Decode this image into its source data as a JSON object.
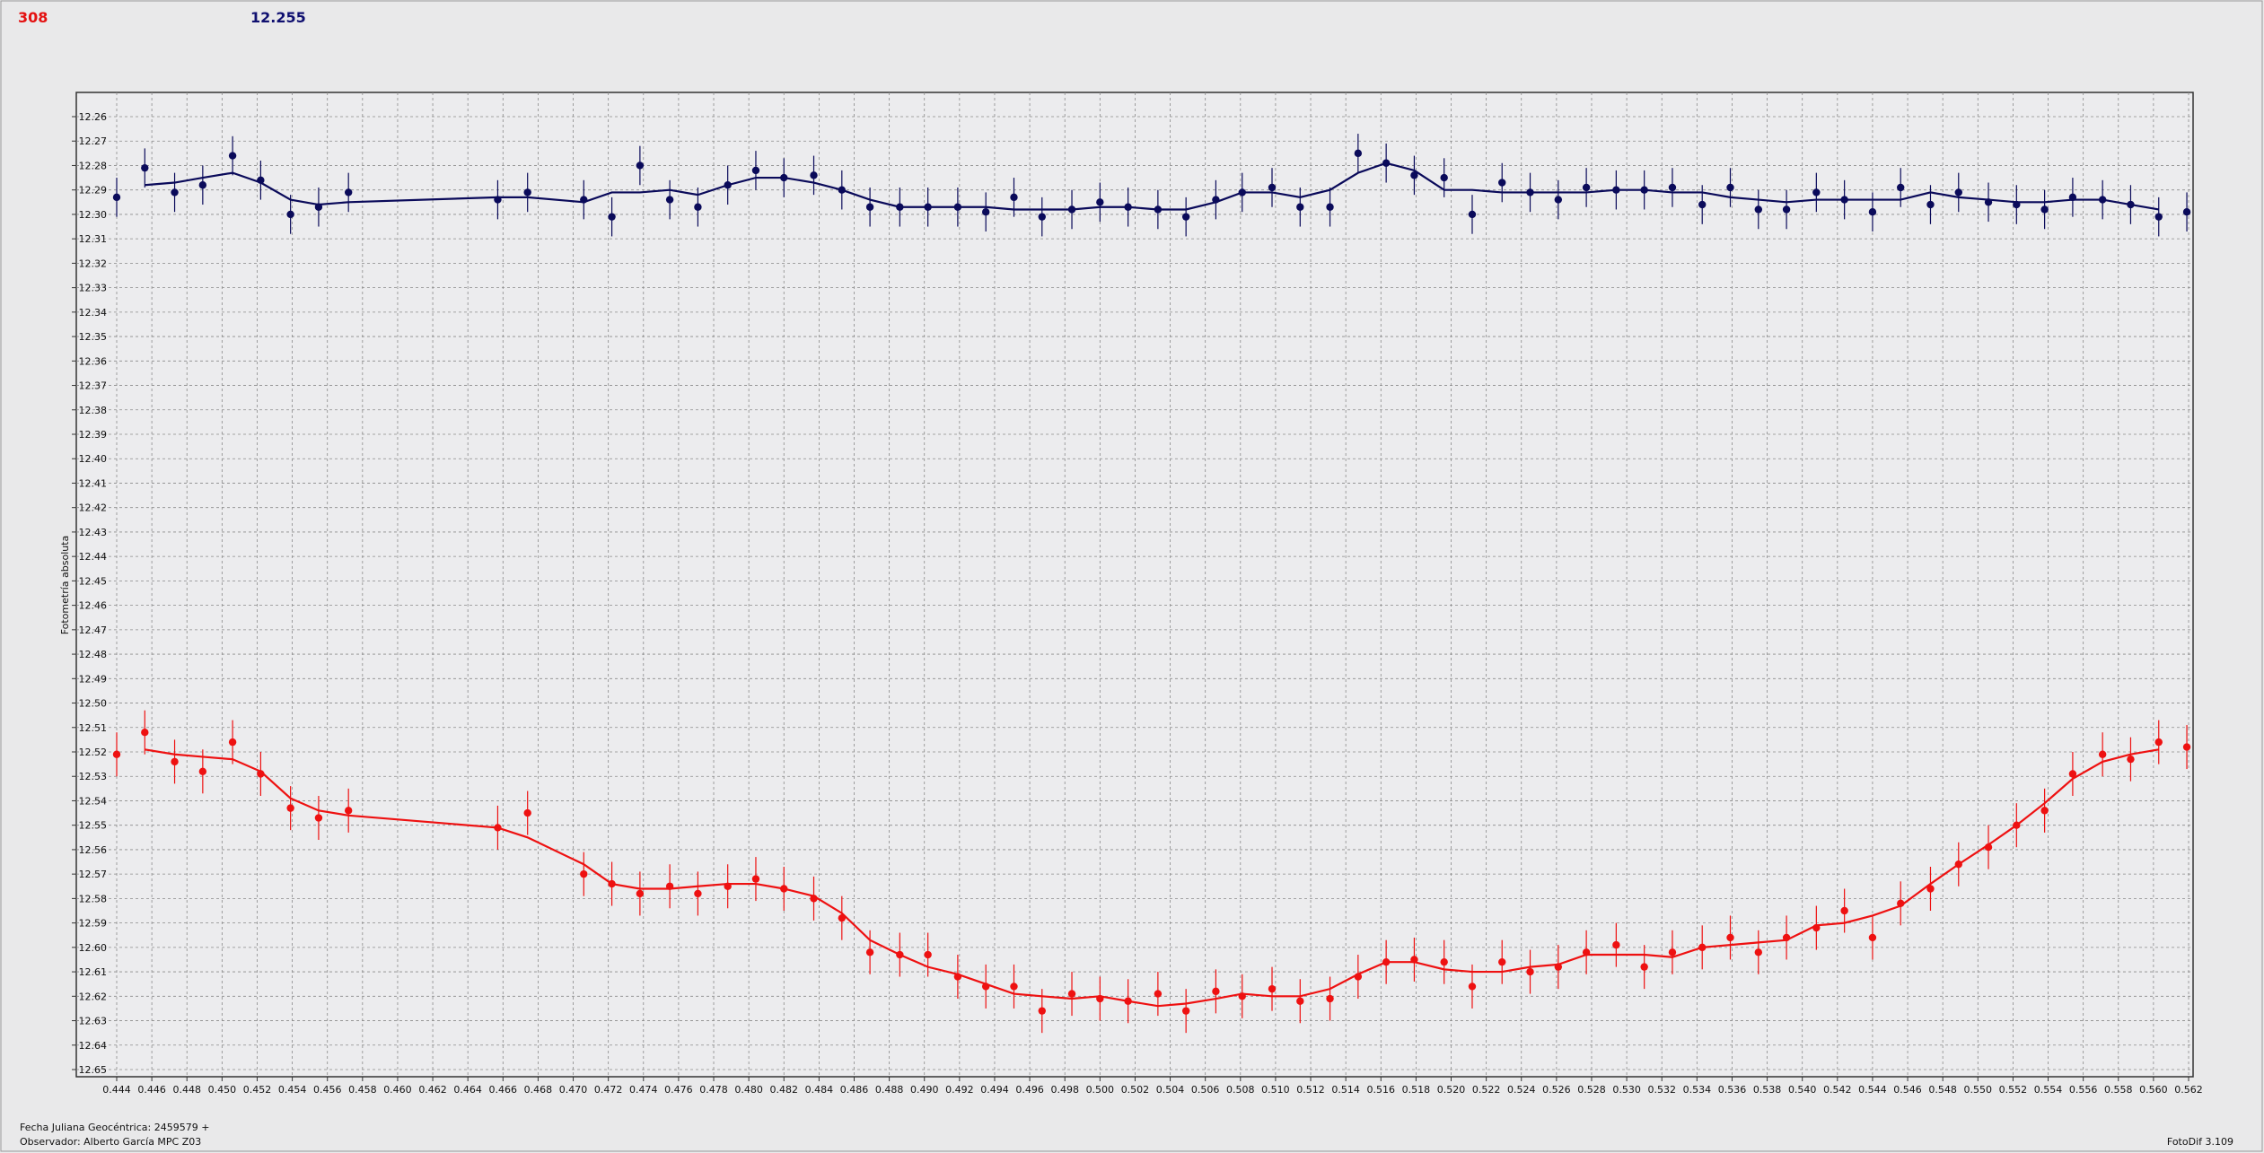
{
  "header": {
    "left": "308",
    "right": "12.255"
  },
  "footer": {
    "date": "Fecha Juliana Geocéntrica: 2459579 +",
    "observer": "Observador: Alberto García MPC Z03",
    "software": "FotoDif 3.109"
  },
  "chart_data": {
    "type": "scatter",
    "ylabel": "Fotometría absoluta",
    "y_inverted": true,
    "grid": true,
    "xlim": [
      0.444,
      0.562
    ],
    "ylim": [
      12.26,
      12.65
    ],
    "xticks": [
      0.444,
      0.446,
      0.448,
      {
        "value": 0.45,
        "label": "0.450"
      },
      0.452,
      0.454,
      0.456,
      0.458,
      {
        "value": 0.46,
        "label": "0.460"
      },
      0.462,
      0.464,
      0.466,
      0.468,
      {
        "value": 0.47,
        "label": "0.470"
      },
      0.472,
      0.474,
      0.476,
      0.478,
      {
        "value": 0.48,
        "label": "0.480"
      },
      0.482,
      0.484,
      0.486,
      0.488,
      {
        "value": 0.49,
        "label": "0.490"
      },
      0.492,
      0.494,
      0.496,
      0.498,
      {
        "value": 0.5,
        "label": "0.500"
      },
      0.502,
      0.504,
      0.506,
      0.508,
      {
        "value": 0.51,
        "label": "0.510"
      },
      0.512,
      0.514,
      0.516,
      0.518,
      {
        "value": 0.52,
        "label": "0.520"
      },
      0.522,
      0.524,
      0.526,
      0.528,
      {
        "value": 0.53,
        "label": "0.530"
      },
      0.532,
      0.534,
      0.536,
      0.538,
      {
        "value": 0.54,
        "label": "0.540"
      },
      0.542,
      0.544,
      0.546,
      0.548,
      {
        "value": 0.55,
        "label": "0.550"
      },
      0.552,
      0.554,
      0.556,
      0.558,
      {
        "value": 0.56,
        "label": "0.560"
      },
      0.562
    ],
    "yticks": [
      12.26,
      12.27,
      12.28,
      12.29,
      {
        "value": 12.3,
        "label": "12.30"
      },
      12.31,
      12.32,
      12.33,
      12.34,
      12.35,
      12.36,
      12.37,
      12.38,
      12.39,
      {
        "value": 12.4,
        "label": "12.40"
      },
      12.41,
      12.42,
      12.43,
      12.44,
      12.45,
      12.46,
      12.47,
      12.48,
      12.49,
      {
        "value": 12.5,
        "label": "12.50"
      },
      12.51,
      12.52,
      12.53,
      12.54,
      12.55,
      12.56,
      12.57,
      12.58,
      12.59,
      {
        "value": 12.6,
        "label": "12.60"
      },
      12.61,
      12.62,
      12.63,
      12.64,
      12.65
    ],
    "x": [
      0.444,
      0.4456,
      0.4473,
      0.4489,
      0.4506,
      0.4522,
      0.4539,
      0.4555,
      0.4572,
      0.4657,
      0.4674,
      0.4706,
      0.4722,
      0.4738,
      0.4755,
      0.4771,
      0.4788,
      0.4804,
      0.482,
      0.4837,
      0.4853,
      0.4869,
      0.4886,
      0.4902,
      0.4919,
      0.4935,
      0.4951,
      0.4967,
      0.4984,
      0.5,
      0.5016,
      0.5033,
      0.5049,
      0.5066,
      0.5081,
      0.5098,
      0.5114,
      0.5131,
      0.5147,
      0.5163,
      0.5179,
      0.5196,
      0.5212,
      0.5229,
      0.5245,
      0.5261,
      0.5277,
      0.5294,
      0.531,
      0.5326,
      0.5343,
      0.5359,
      0.5375,
      0.5391,
      0.5408,
      0.5424,
      0.544,
      0.5456,
      0.5473,
      0.5489,
      0.5506,
      0.5522,
      0.5538,
      0.5554,
      0.5571,
      0.5587,
      0.5603,
      0.5619
    ],
    "series": [
      {
        "color": "#0a0a5a",
        "error": 0.008,
        "values": [
          12.293,
          12.281,
          12.291,
          12.288,
          12.276,
          12.286,
          12.3,
          12.297,
          12.291,
          12.294,
          12.291,
          12.294,
          12.301,
          12.28,
          12.294,
          12.297,
          12.288,
          12.282,
          12.285,
          12.284,
          12.29,
          12.297,
          12.297,
          12.297,
          12.297,
          12.299,
          12.293,
          12.301,
          12.298,
          12.295,
          12.297,
          12.298,
          12.301,
          12.294,
          12.291,
          12.289,
          12.297,
          12.297,
          12.275,
          12.279,
          12.284,
          12.285,
          12.3,
          12.287,
          12.291,
          12.294,
          12.289,
          12.29,
          12.29,
          12.289,
          12.296,
          12.289,
          12.298,
          12.298,
          12.291,
          12.294,
          12.299,
          12.289,
          12.296,
          12.291,
          12.295,
          12.296,
          12.298,
          12.293,
          12.294,
          12.296,
          12.301,
          12.299
        ],
        "line": [
          null,
          12.288,
          12.287,
          12.285,
          12.283,
          12.287,
          12.294,
          12.296,
          12.295,
          12.293,
          12.293,
          12.295,
          12.291,
          12.291,
          12.29,
          12.292,
          12.288,
          12.285,
          12.285,
          12.287,
          12.29,
          12.294,
          12.297,
          12.297,
          12.297,
          12.297,
          12.298,
          12.298,
          12.298,
          12.297,
          12.297,
          12.298,
          12.298,
          12.295,
          12.291,
          12.291,
          12.293,
          12.29,
          12.283,
          12.279,
          12.282,
          12.29,
          12.29,
          12.291,
          12.291,
          12.291,
          12.291,
          12.29,
          12.29,
          12.291,
          12.291,
          12.293,
          12.294,
          12.295,
          12.294,
          12.294,
          12.294,
          12.294,
          12.291,
          12.293,
          12.294,
          12.295,
          12.295,
          12.294,
          12.294,
          12.296,
          12.298,
          null
        ]
      },
      {
        "color": "#ee1111",
        "error": 0.009,
        "values": [
          12.521,
          12.512,
          12.524,
          12.528,
          12.516,
          12.529,
          12.543,
          12.547,
          12.544,
          12.551,
          12.545,
          12.57,
          12.574,
          12.578,
          12.575,
          12.578,
          12.575,
          12.572,
          12.576,
          12.58,
          12.588,
          12.602,
          12.603,
          12.603,
          12.612,
          12.616,
          12.616,
          12.626,
          12.619,
          12.621,
          12.622,
          12.619,
          12.626,
          12.618,
          12.62,
          12.617,
          12.622,
          12.621,
          12.612,
          12.606,
          12.605,
          12.606,
          12.616,
          12.606,
          12.61,
          12.608,
          12.602,
          12.599,
          12.608,
          12.602,
          12.6,
          12.596,
          12.602,
          12.596,
          12.592,
          12.585,
          12.596,
          12.582,
          12.576,
          12.566,
          12.559,
          12.55,
          12.544,
          12.529,
          12.521,
          12.523,
          12.516,
          12.518
        ],
        "line": [
          null,
          12.519,
          12.521,
          12.522,
          12.523,
          12.528,
          12.539,
          12.544,
          12.546,
          12.551,
          12.555,
          12.566,
          12.574,
          12.576,
          12.576,
          12.575,
          12.574,
          12.574,
          12.576,
          12.579,
          12.586,
          12.597,
          12.603,
          12.608,
          12.611,
          12.615,
          12.619,
          12.62,
          12.621,
          12.62,
          12.622,
          12.624,
          12.623,
          12.621,
          12.619,
          12.62,
          12.62,
          12.617,
          12.611,
          12.606,
          12.606,
          12.609,
          12.61,
          12.61,
          12.608,
          12.607,
          12.603,
          12.603,
          12.603,
          12.604,
          12.6,
          12.599,
          12.598,
          12.597,
          12.591,
          12.59,
          12.587,
          12.583,
          12.574,
          12.566,
          12.558,
          12.55,
          12.541,
          12.531,
          12.524,
          12.521,
          12.519,
          null
        ]
      }
    ]
  }
}
